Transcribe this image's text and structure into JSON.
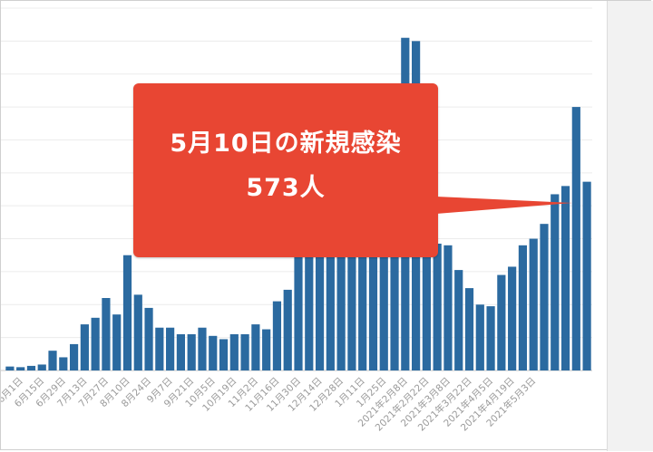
{
  "chart_data": {
    "type": "bar",
    "series": [
      {
        "values": [
          12,
          10,
          14,
          18,
          60,
          40,
          80,
          140,
          160,
          220,
          170,
          350,
          230,
          190,
          130,
          130,
          110,
          110,
          130,
          105,
          95,
          110,
          110,
          140,
          125,
          210,
          245,
          420,
          415,
          400,
          405,
          525,
          570,
          690,
          690,
          510,
          500,
          1010,
          1000,
          525,
          385,
          380,
          305,
          250,
          200,
          195,
          290,
          315,
          380,
          400,
          445,
          535,
          560,
          800,
          573
        ]
      }
    ],
    "x_tick_labels": [
      "6月1日",
      "6月15日",
      "6月29日",
      "7月13日",
      "7月27日",
      "8月10日",
      "8月24日",
      "9月7日",
      "9月21日",
      "10月5日",
      "10月19日",
      "11月2日",
      "11月16日",
      "11月30日",
      "12月14日",
      "12月28日",
      "1月11日",
      "1月25日",
      "2021年2月8日",
      "2021年2月22日",
      "2021年3月8日",
      "2021年3月22日",
      "2021年4月5日",
      "2021年4月19日",
      "2021年5月3日"
    ],
    "ylim": [
      0,
      1100
    ],
    "grid": "horizontal",
    "bar_color": "#2b6aa0",
    "highlight_index": 54,
    "annotation": {
      "line1": "5月10日の新規感染",
      "line2": "573人",
      "color": "#e84633"
    }
  }
}
